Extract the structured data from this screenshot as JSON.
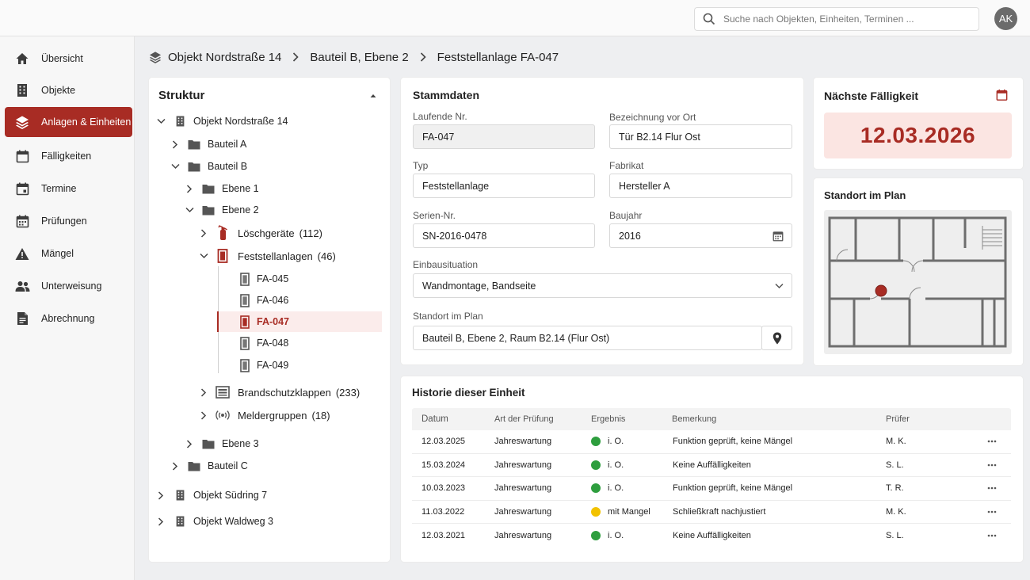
{
  "search": {
    "placeholder": "Suche nach Objekten, Einheiten, Terminen ..."
  },
  "user": {
    "initials": "AK"
  },
  "sidebar": {
    "items": [
      {
        "label": "Übersicht",
        "icon": "home-icon"
      },
      {
        "label": "Objekte",
        "icon": "building-icon"
      },
      {
        "label": "Anlagen & Einheiten",
        "icon": "layers-icon",
        "active": true
      },
      {
        "label": "Fälligkeiten",
        "icon": "calendar-icon"
      },
      {
        "label": "Termine",
        "icon": "calendar-icon"
      },
      {
        "label": "Prüfungen",
        "icon": "calendar-check-icon"
      },
      {
        "label": "Mängel",
        "icon": "warning-icon"
      },
      {
        "label": "Unterweisung",
        "icon": "people-icon"
      },
      {
        "label": "Abrechnung",
        "icon": "document-icon"
      }
    ]
  },
  "breadcrumb": [
    "Objekt Nordstraße 14",
    "Bauteil B, Ebene 2",
    "Feststellanlage FA-047"
  ],
  "tree": {
    "title": "Struktur",
    "nodes": {
      "obj1": "Objekt Nordstraße 14",
      "bauteil_a": "Bauteil A",
      "bauteil_b": "Bauteil B",
      "ebene1": "Ebene 1",
      "ebene2": "Ebene 2",
      "loeschgeraete": "Löschgeräte",
      "loeschgeraete_count": "(112)",
      "feststellanlagen": "Feststellanlagen",
      "feststellanlagen_count": "(46)",
      "fa045": "FA-045",
      "fa046": "FA-046",
      "fa047": "FA-047",
      "fa048": "FA-048",
      "fa049": "FA-049",
      "brandschutzklappen": "Brandschutzklappen",
      "brandschutzklappen_count": "(233)",
      "meldergruppen": "Meldergruppen",
      "meldergruppen_count": "(18)",
      "ebene3": "Ebene 3",
      "bauteil_c": "Bauteil C",
      "obj2": "Objekt Südring 7",
      "obj3": "Objekt Waldweg 3"
    }
  },
  "stammdaten": {
    "title": "Stammdaten",
    "laufende_nr": {
      "label": "Laufende Nr.",
      "value": "FA-047"
    },
    "bezeichnung": {
      "label": "Bezeichnung vor Ort",
      "value": "Tür B2.14 Flur Ost"
    },
    "typ": {
      "label": "Typ",
      "value": "Feststellanlage"
    },
    "fabrikat": {
      "label": "Fabrikat",
      "value": "Hersteller A"
    },
    "serien_nr": {
      "label": "Serien-Nr.",
      "value": "SN-2016-0478"
    },
    "baujahr": {
      "label": "Baujahr",
      "value": "2016"
    },
    "einbausituation": {
      "label": "Einbausituation",
      "value": "Wandmontage, Bandseite"
    },
    "standort": {
      "label": "Standort im Plan",
      "value": "Bauteil B, Ebene 2, Raum B2.14 (Flur Ost)"
    }
  },
  "faelligkeit": {
    "title": "Nächste Fälligkeit",
    "date": "12.03.2026"
  },
  "plan": {
    "title": "Standort im Plan"
  },
  "historie": {
    "title": "Historie dieser Einheit",
    "columns": [
      "Datum",
      "Art der Prüfung",
      "Ergebnis",
      "Bemerkung",
      "Prüfer"
    ],
    "rows": [
      {
        "datum": "12.03.2025",
        "art": "Jahreswartung",
        "ergebnis": "i. O.",
        "status_color": "#2e9e3e",
        "bemerkung": "Funktion geprüft, keine Mängel",
        "pruefer": "M. K."
      },
      {
        "datum": "15.03.2024",
        "art": "Jahreswartung",
        "ergebnis": "i. O.",
        "status_color": "#2e9e3e",
        "bemerkung": "Keine Auffälligkeiten",
        "pruefer": "S. L."
      },
      {
        "datum": "10.03.2023",
        "art": "Jahreswartung",
        "ergebnis": "i. O.",
        "status_color": "#2e9e3e",
        "bemerkung": "Funktion geprüft, keine Mängel",
        "pruefer": "T. R."
      },
      {
        "datum": "11.03.2022",
        "art": "Jahreswartung",
        "ergebnis": "mit Mangel",
        "status_color": "#f2c200",
        "bemerkung": "Schließkraft nachjustiert",
        "pruefer": "M. K."
      },
      {
        "datum": "12.03.2021",
        "art": "Jahreswartung",
        "ergebnis": "i. O.",
        "status_color": "#2e9e3e",
        "bemerkung": "Keine Auffälligkeiten",
        "pruefer": "S. L."
      }
    ]
  },
  "colors": {
    "accent": "#a82c24",
    "ok": "#2e9e3e",
    "warn": "#f2c200"
  }
}
